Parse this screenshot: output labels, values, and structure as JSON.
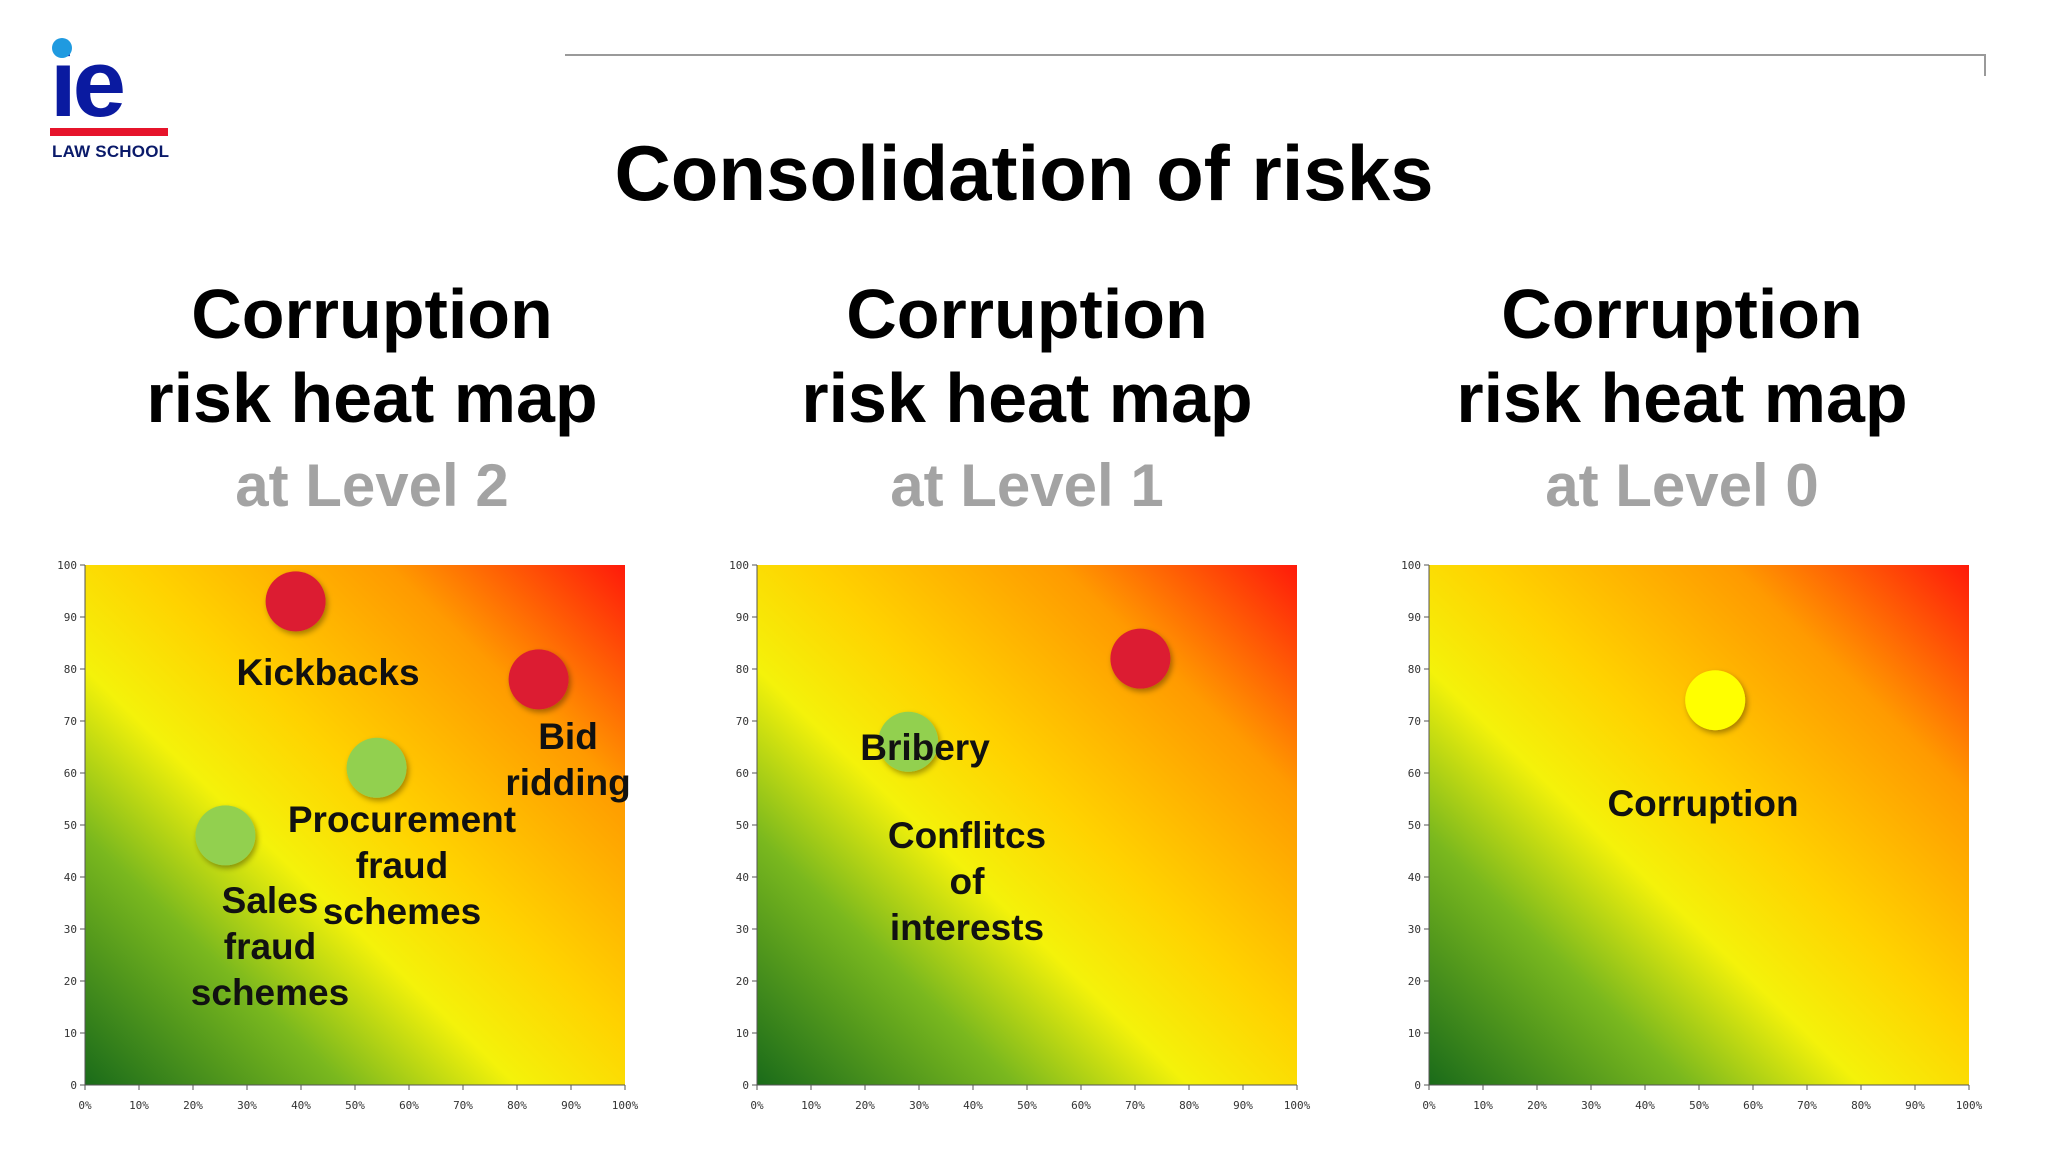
{
  "logo": {
    "mark": "ie",
    "subtitle": "LAW SCHOOL"
  },
  "title": "Consolidation of risks",
  "panels": [
    {
      "title_line1": "Corruption",
      "title_line2": "risk heat map",
      "level": "at Level 2"
    },
    {
      "title_line1": "Corruption",
      "title_line2": "risk heat map",
      "level": "at Level 1"
    },
    {
      "title_line1": "Corruption",
      "title_line2": "risk heat map",
      "level": "at Level 0"
    }
  ],
  "colors": {
    "high_risk": "#dc1e32",
    "low_risk": "#92d050",
    "medium_risk": "#ffff00"
  },
  "chart_data": [
    {
      "type": "scatter",
      "title": "",
      "xlabel": "",
      "ylabel": "",
      "xlim": [
        0,
        100
      ],
      "ylim": [
        0,
        100
      ],
      "x_ticks": [
        "0%",
        "10%",
        "20%",
        "30%",
        "40%",
        "50%",
        "60%",
        "70%",
        "80%",
        "90%",
        "100%"
      ],
      "y_ticks": [
        "0",
        "10",
        "20",
        "30",
        "40",
        "50",
        "60",
        "70",
        "80",
        "90",
        "100"
      ],
      "points": [
        {
          "x": 39,
          "y": 93,
          "color": "#dc1e32",
          "label": "Kickbacks",
          "label_lines": [
            "Kickbacks"
          ]
        },
        {
          "x": 84,
          "y": 78,
          "color": "#dc1e32",
          "label": "Bid ridding",
          "label_lines": [
            "Bid",
            "ridding"
          ]
        },
        {
          "x": 54,
          "y": 61,
          "color": "#92d050",
          "label": "Procurement fraud schemes",
          "label_lines": [
            "Procurement",
            "fraud",
            "schemes"
          ]
        },
        {
          "x": 26,
          "y": 48,
          "color": "#92d050",
          "label": "Sales fraud schemes",
          "label_lines": [
            "Sales",
            "fraud",
            "schemes"
          ]
        }
      ]
    },
    {
      "type": "scatter",
      "title": "",
      "xlabel": "",
      "ylabel": "",
      "xlim": [
        0,
        100
      ],
      "ylim": [
        0,
        100
      ],
      "x_ticks": [
        "0%",
        "10%",
        "20%",
        "30%",
        "40%",
        "50%",
        "60%",
        "70%",
        "80%",
        "90%",
        "100%"
      ],
      "y_ticks": [
        "0",
        "10",
        "20",
        "30",
        "40",
        "50",
        "60",
        "70",
        "80",
        "90",
        "100"
      ],
      "points": [
        {
          "x": 71,
          "y": 82,
          "color": "#dc1e32",
          "label": "Bribery",
          "label_lines": [
            "Bribery"
          ]
        },
        {
          "x": 28,
          "y": 66,
          "color": "#92d050",
          "label": "Conflitcs of interests",
          "label_lines": [
            "Conflitcs",
            "of",
            "interests"
          ]
        }
      ]
    },
    {
      "type": "scatter",
      "title": "",
      "xlabel": "",
      "ylabel": "",
      "xlim": [
        0,
        100
      ],
      "ylim": [
        0,
        100
      ],
      "x_ticks": [
        "0%",
        "10%",
        "20%",
        "30%",
        "40%",
        "50%",
        "60%",
        "70%",
        "80%",
        "90%",
        "100%"
      ],
      "y_ticks": [
        "0",
        "10",
        "20",
        "30",
        "40",
        "50",
        "60",
        "70",
        "80",
        "90",
        "100"
      ],
      "points": [
        {
          "x": 53,
          "y": 74,
          "color": "#ffff00",
          "label": "Corruption",
          "label_lines": [
            "Corruption"
          ]
        }
      ]
    }
  ]
}
